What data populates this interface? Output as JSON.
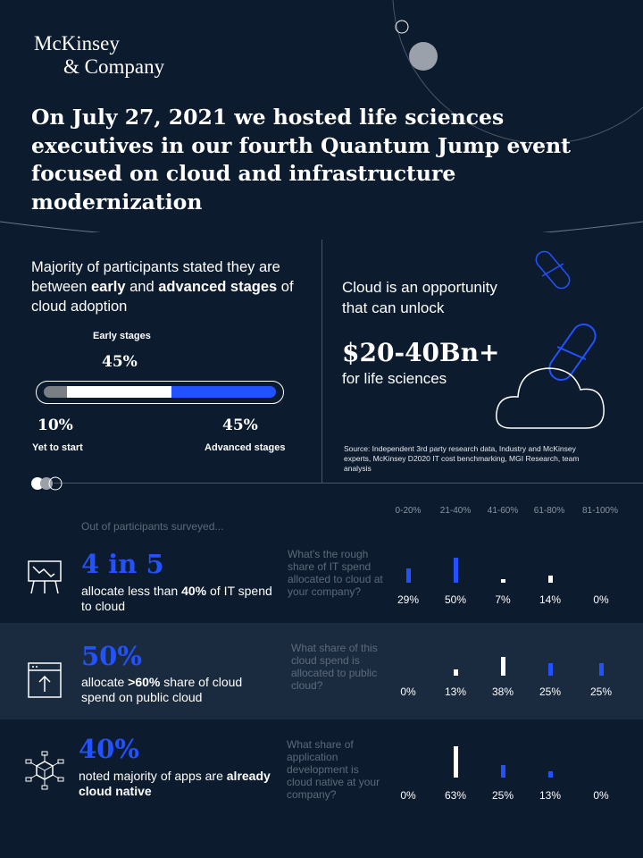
{
  "logo": {
    "line1": "McKinsey",
    "line2": "& Company"
  },
  "headline": "On July 27, 2021 we hosted life sciences executives in our fourth Quantum Jump event focused on cloud and infrastructure modernization",
  "adoption": {
    "intro_part1": "Majority of participants stated they are between ",
    "intro_bold1": "early",
    "intro_part2": " and ",
    "intro_bold2": "advanced stages",
    "intro_part3": " of cloud adoption",
    "early_label": "Early stages",
    "early_pct": "45%",
    "start_pct": "10%",
    "start_label": "Yet to start",
    "advanced_pct": "45%",
    "advanced_label": "Advanced stages",
    "split": {
      "yet_to_start": 10,
      "early": 45,
      "advanced": 45
    }
  },
  "opportunity": {
    "text": "Cloud is an opportunity that can unlock",
    "amount": "$20-40Bn+",
    "suffix": "for life sciences",
    "source": "Source: Independent 3rd party research data, Industry and McKinsey experts, McKinsey D2020 IT cost benchmarking, MGI Research, team analysis"
  },
  "survey": {
    "intro": "Out of participants surveyed...",
    "columns": [
      "0-20%",
      "21-40%",
      "41-60%",
      "61-80%",
      "81-100%"
    ],
    "rows": [
      {
        "stat": "4 in 5",
        "desc_part1": "allocate less than ",
        "desc_bold": "40%",
        "desc_part2": " of IT spend to cloud",
        "question": "What's the rough share of IT spend allocated to cloud at your company?",
        "values": [
          "29%",
          "50%",
          "7%",
          "14%",
          "0%"
        ],
        "numbers": [
          29,
          50,
          7,
          14,
          0
        ],
        "colors": [
          "blue",
          "blue",
          "white",
          "white",
          "blue"
        ]
      },
      {
        "stat": "50%",
        "desc_part1": "allocate ",
        "desc_bold": ">60%",
        "desc_part2": " share of cloud spend on public cloud",
        "question": "What share of this cloud spend is allocated to public cloud?",
        "values": [
          "0%",
          "13%",
          "38%",
          "25%",
          "25%"
        ],
        "numbers": [
          0,
          13,
          38,
          25,
          25
        ],
        "colors": [
          "white",
          "white",
          "white",
          "blue",
          "blue"
        ]
      },
      {
        "stat": "40%",
        "desc_part1": "noted majority of apps are ",
        "desc_bold": "already cloud native",
        "desc_part2": "",
        "question": "What share of application development is cloud native  at your company?",
        "values": [
          "0%",
          "63%",
          "25%",
          "13%",
          "0%"
        ],
        "numbers": [
          0,
          63,
          25,
          13,
          0
        ],
        "colors": [
          "white",
          "white",
          "blue",
          "blue",
          "white"
        ]
      }
    ]
  },
  "colors": {
    "background": "#0c1b2e",
    "band": "#1b2b3f",
    "accent": "#2251ff",
    "muted": "#5d6a7a"
  },
  "icons": [
    "orbit-decoration",
    "pill-icon",
    "cloud-icon",
    "presentation-chart-icon",
    "window-upload-icon",
    "network-cube-icon"
  ]
}
